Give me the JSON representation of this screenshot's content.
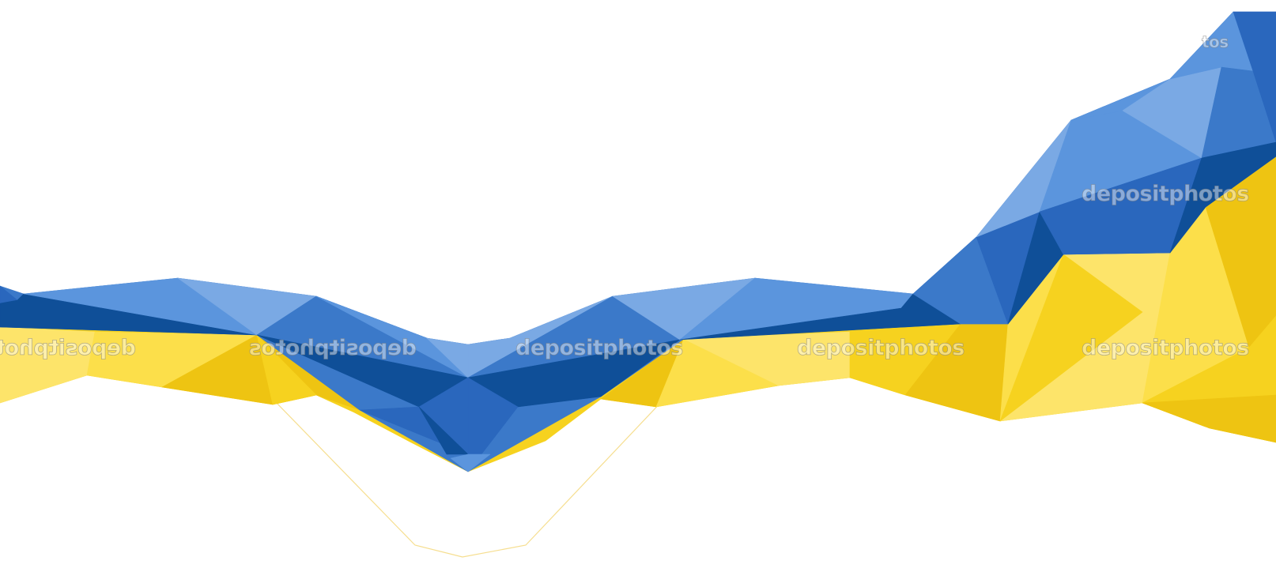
{
  "image": {
    "subject": "ukrainian-flag-low-poly-wave",
    "colors": {
      "background": "#ffffff",
      "blue_dark": "#0f4f98",
      "blue_mid": "#2a67bd",
      "blue": "#3b79c9",
      "blue_light": "#5b95dd",
      "blue_pale": "#7aa9e4",
      "yellow_dark": "#eec412",
      "yellow": "#f6d21f",
      "yellow_light": "#fcdf4a",
      "yellow_pale": "#fde46a"
    }
  },
  "watermark": {
    "text": "depositphotos",
    "mirrored_text": "depositphotos",
    "corner_text": "tos"
  }
}
